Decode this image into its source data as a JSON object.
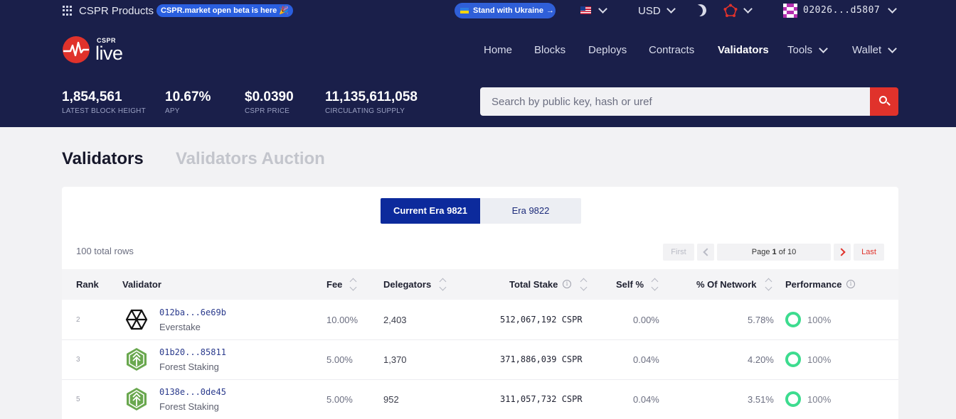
{
  "topbar": {
    "products_label": "CSPR Products",
    "beta_badge": "CSPR.market open beta is here 🎉",
    "ukraine_label": "Stand with Ukraine",
    "currency": "USD",
    "account": "02026...d5807"
  },
  "logo": {
    "small": "CSPR",
    "big": "live"
  },
  "nav": {
    "items": [
      "Home",
      "Blocks",
      "Deploys",
      "Contracts",
      "Validators",
      "Tools",
      "Wallet"
    ],
    "active": "Validators"
  },
  "stats": [
    {
      "value": "1,854,561",
      "label": "LATEST BLOCK HEIGHT"
    },
    {
      "value": "10.67%",
      "label": "APY"
    },
    {
      "value": "$0.0390",
      "label": "CSPR PRICE"
    },
    {
      "value": "11,135,611,058",
      "label": "CIRCULATING SUPPLY"
    }
  ],
  "search": {
    "placeholder": "Search by public key, hash or uref"
  },
  "tabs": {
    "main": "Validators",
    "other": "Validators Auction"
  },
  "era": {
    "current": "Current Era 9821",
    "next": "Era 9822"
  },
  "table": {
    "total_rows": "100 total rows",
    "pagination": {
      "first": "First",
      "last": "Last",
      "page_prefix": "Page",
      "page_current": "1",
      "page_suffix": "of 10"
    },
    "headers": {
      "rank": "Rank",
      "validator": "Validator",
      "fee": "Fee",
      "delegators": "Delegators",
      "total_stake": "Total Stake",
      "self": "Self %",
      "network": "% Of Network",
      "performance": "Performance"
    },
    "rows": [
      {
        "rank": "2",
        "hash": "012ba...6e69b",
        "name": "Everstake",
        "fee": "10.00%",
        "delegators": "2,403",
        "stake": "512,067,192 CSPR",
        "self": "0.00%",
        "network": "5.78%",
        "performance": "100%"
      },
      {
        "rank": "3",
        "hash": "01b20...85811",
        "name": "Forest Staking",
        "fee": "5.00%",
        "delegators": "1,370",
        "stake": "371,886,039 CSPR",
        "self": "0.04%",
        "network": "4.20%",
        "performance": "100%"
      },
      {
        "rank": "5",
        "hash": "0138e...0de45",
        "name": "Forest Staking",
        "fee": "5.00%",
        "delegators": "952",
        "stake": "311,057,732 CSPR",
        "self": "0.04%",
        "network": "3.51%",
        "performance": "100%"
      }
    ]
  },
  "colors": {
    "header_bg": "#1a1f4a",
    "accent_red": "#e0322b",
    "era_active": "#0c2a9c",
    "performance_green": "#3ddc8f"
  },
  "icons": [
    "grid-icon",
    "flag-us-icon",
    "moon-icon",
    "network-icon",
    "avatar-icon",
    "search-icon",
    "info-icon",
    "sort-icon",
    "everstake-icon",
    "forest-staking-icon"
  ]
}
